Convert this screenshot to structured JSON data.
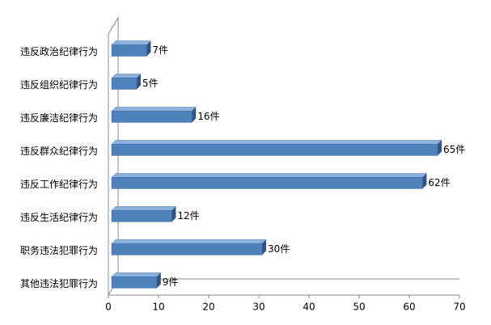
{
  "chart_data": {
    "type": "bar",
    "orientation": "horizontal",
    "categories": [
      "违反政治纪律行为",
      "违反组织纪律行为",
      "违反廉洁纪律行为",
      "违反群众纪律行为",
      "违反工作纪律行为",
      "违反生活纪律行为",
      "职务违法犯罪行为",
      "其他违法犯罪行为"
    ],
    "values": [
      7,
      5,
      16,
      65,
      62,
      12,
      30,
      9
    ],
    "value_labels": [
      "7件",
      "5件",
      "16件",
      "65件",
      "62件",
      "12件",
      "30件",
      "9件"
    ],
    "color": "#4f81bd",
    "xlim": [
      0,
      70
    ],
    "xticks": [
      0,
      10,
      20,
      30,
      40,
      50,
      60,
      70
    ]
  }
}
